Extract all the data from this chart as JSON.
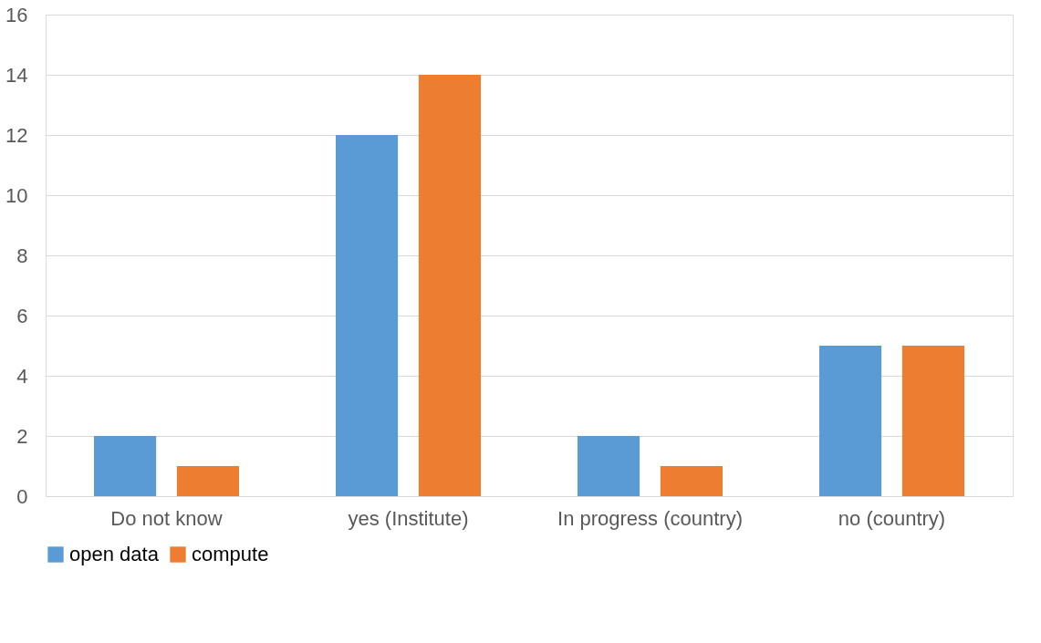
{
  "chart_data": {
    "type": "bar",
    "categories": [
      "Do not know",
      "yes (Institute)",
      "In progress (country)",
      "no (country)"
    ],
    "series": [
      {
        "name": "open data",
        "color": "#5b9bd5",
        "values": [
          2,
          12,
          2,
          5
        ]
      },
      {
        "name": "compute",
        "color": "#ed7d31",
        "values": [
          1,
          14,
          1,
          5
        ]
      }
    ],
    "ylim": [
      0,
      16
    ],
    "yticks": [
      0,
      2,
      4,
      6,
      8,
      10,
      12,
      14,
      16
    ],
    "grid": "y",
    "legend": "bottom"
  }
}
